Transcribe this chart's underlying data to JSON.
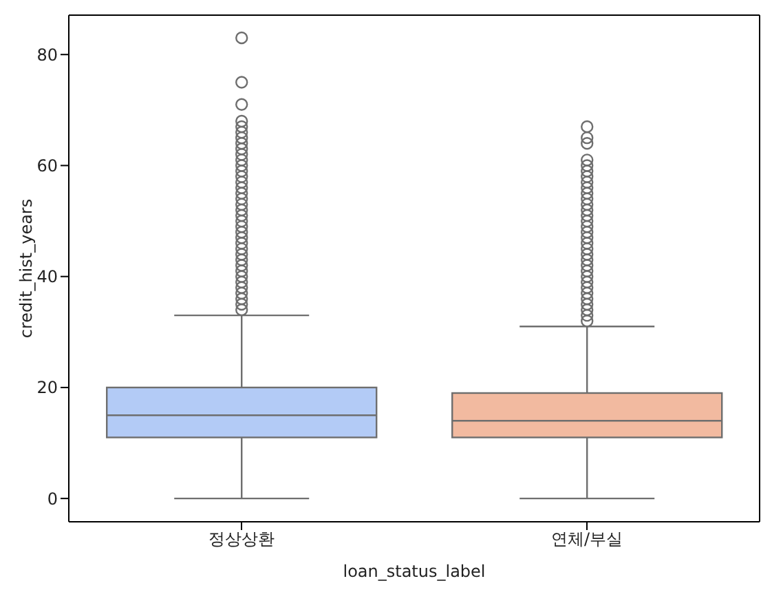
{
  "chart_data": {
    "type": "box",
    "xlabel": "loan_status_label",
    "ylabel": "credit_hist_years",
    "categories": [
      "정상상환",
      "연체/부실"
    ],
    "colors": [
      "#b3cbf6",
      "#f2baa0"
    ],
    "boxes": [
      {
        "low": 0,
        "q1": 11,
        "median": 15,
        "q3": 20,
        "high": 33,
        "outliers": [
          34,
          35,
          36,
          37,
          38,
          39,
          40,
          41,
          42,
          43,
          44,
          45,
          46,
          47,
          48,
          49,
          50,
          51,
          52,
          53,
          54,
          55,
          56,
          57,
          58,
          59,
          60,
          61,
          62,
          63,
          64,
          65,
          66,
          67,
          68,
          71,
          75,
          83
        ]
      },
      {
        "low": 0,
        "q1": 11,
        "median": 14,
        "q3": 19,
        "high": 31,
        "outliers": [
          32,
          33,
          34,
          35,
          36,
          37,
          38,
          39,
          40,
          41,
          42,
          43,
          44,
          45,
          46,
          47,
          48,
          49,
          50,
          51,
          52,
          53,
          54,
          55,
          56,
          57,
          58,
          59,
          60,
          61,
          64,
          65,
          67
        ]
      }
    ],
    "ylim": [
      -4.2,
      87.1
    ],
    "yticks": [
      0,
      20,
      40,
      60,
      80
    ],
    "grid": false
  }
}
